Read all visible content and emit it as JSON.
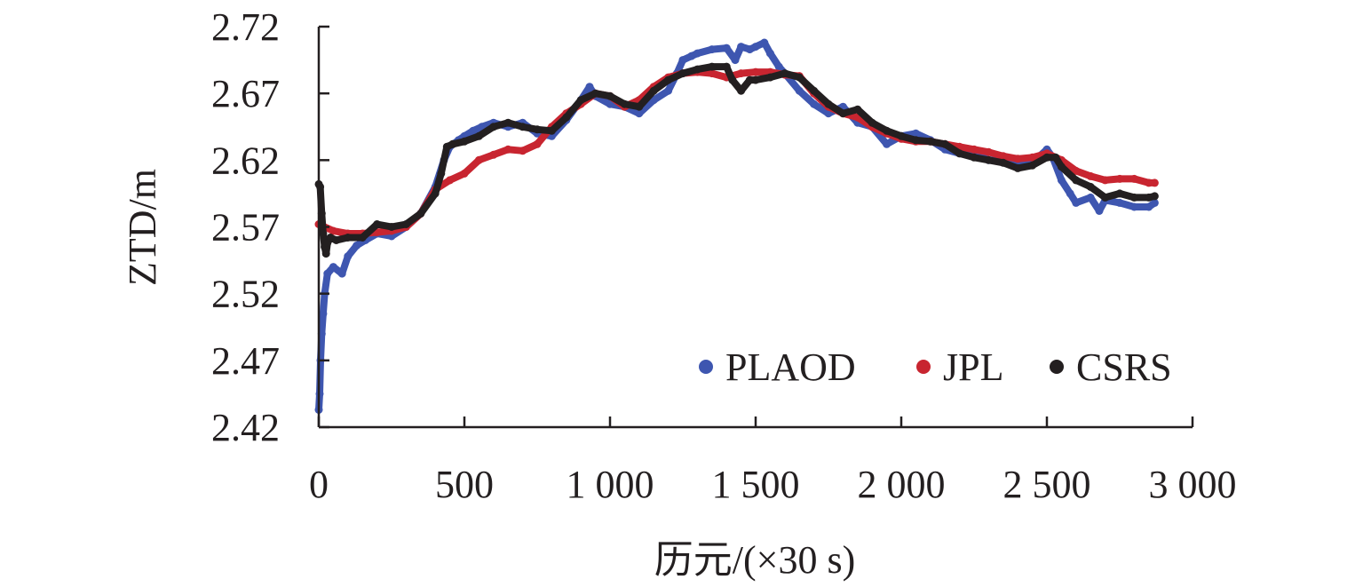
{
  "chart_data": {
    "type": "line",
    "xlabel": "历元/(×30 s)",
    "ylabel": "ZTD/m",
    "xlim": [
      0,
      3000
    ],
    "ylim": [
      2.42,
      2.72
    ],
    "x_ticks": [
      0,
      500,
      1000,
      1500,
      2000,
      2500,
      3000
    ],
    "x_tick_labels": [
      "0",
      "500",
      "1 000",
      "1 500",
      "2 000",
      "2 500",
      "3 000"
    ],
    "y_ticks": [
      2.42,
      2.47,
      2.52,
      2.57,
      2.62,
      2.67,
      2.72
    ],
    "y_tick_labels": [
      "2.42",
      "2.47",
      "2.52",
      "2.57",
      "2.62",
      "2.67",
      "2.72"
    ],
    "grid": false,
    "legend_position": "bottom-right",
    "series": [
      {
        "name": "PLAOD",
        "color": "#3e56b0",
        "x": [
          0,
          3,
          6,
          10,
          15,
          20,
          30,
          50,
          80,
          100,
          130,
          160,
          200,
          250,
          300,
          350,
          400,
          430,
          450,
          480,
          500,
          530,
          560,
          600,
          650,
          700,
          750,
          800,
          850,
          900,
          930,
          950,
          1000,
          1050,
          1100,
          1150,
          1200,
          1230,
          1250,
          1280,
          1300,
          1350,
          1400,
          1430,
          1450,
          1480,
          1500,
          1530,
          1550,
          1580,
          1600,
          1650,
          1700,
          1750,
          1800,
          1850,
          1900,
          1950,
          2000,
          2050,
          2100,
          2150,
          2200,
          2250,
          2300,
          2350,
          2400,
          2450,
          2500,
          2520,
          2550,
          2580,
          2600,
          2650,
          2680,
          2700,
          2750,
          2800,
          2850,
          2870
        ],
        "values": [
          2.433,
          2.445,
          2.47,
          2.49,
          2.505,
          2.52,
          2.535,
          2.54,
          2.535,
          2.548,
          2.556,
          2.56,
          2.565,
          2.563,
          2.57,
          2.58,
          2.6,
          2.62,
          2.63,
          2.635,
          2.638,
          2.642,
          2.645,
          2.648,
          2.645,
          2.648,
          2.64,
          2.638,
          2.65,
          2.665,
          2.675,
          2.668,
          2.662,
          2.66,
          2.655,
          2.665,
          2.672,
          2.685,
          2.695,
          2.698,
          2.7,
          2.703,
          2.704,
          2.695,
          2.705,
          2.703,
          2.705,
          2.708,
          2.7,
          2.69,
          2.685,
          2.672,
          2.662,
          2.655,
          2.66,
          2.648,
          2.645,
          2.632,
          2.638,
          2.64,
          2.635,
          2.628,
          2.625,
          2.625,
          2.62,
          2.62,
          2.618,
          2.618,
          2.628,
          2.622,
          2.605,
          2.595,
          2.588,
          2.592,
          2.582,
          2.59,
          2.588,
          2.585,
          2.585,
          2.588
        ]
      },
      {
        "name": "JPL",
        "color": "#c82530",
        "x": [
          0,
          50,
          100,
          150,
          200,
          250,
          300,
          350,
          400,
          450,
          500,
          550,
          600,
          650,
          700,
          750,
          800,
          850,
          900,
          950,
          1000,
          1050,
          1100,
          1150,
          1200,
          1250,
          1300,
          1350,
          1400,
          1450,
          1500,
          1550,
          1600,
          1650,
          1700,
          1750,
          1800,
          1850,
          1900,
          1950,
          2000,
          2050,
          2100,
          2150,
          2200,
          2250,
          2300,
          2350,
          2400,
          2450,
          2500,
          2550,
          2600,
          2650,
          2700,
          2750,
          2800,
          2850,
          2870
        ],
        "values": [
          2.572,
          2.567,
          2.565,
          2.565,
          2.566,
          2.567,
          2.57,
          2.58,
          2.598,
          2.605,
          2.61,
          2.62,
          2.624,
          2.628,
          2.627,
          2.632,
          2.645,
          2.655,
          2.662,
          2.67,
          2.668,
          2.66,
          2.665,
          2.675,
          2.682,
          2.685,
          2.686,
          2.685,
          2.682,
          2.685,
          2.686,
          2.686,
          2.684,
          2.683,
          2.67,
          2.66,
          2.655,
          2.652,
          2.645,
          2.64,
          2.636,
          2.634,
          2.634,
          2.632,
          2.63,
          2.628,
          2.626,
          2.623,
          2.621,
          2.622,
          2.625,
          2.62,
          2.612,
          2.608,
          2.605,
          2.606,
          2.606,
          2.603,
          2.603
        ]
      },
      {
        "name": "CSRS",
        "color": "#231f20",
        "x": [
          0,
          5,
          10,
          15,
          20,
          25,
          30,
          40,
          60,
          100,
          150,
          200,
          250,
          300,
          350,
          400,
          420,
          440,
          460,
          500,
          550,
          600,
          650,
          700,
          750,
          800,
          850,
          900,
          950,
          1000,
          1050,
          1100,
          1150,
          1200,
          1250,
          1300,
          1350,
          1400,
          1420,
          1450,
          1480,
          1500,
          1550,
          1600,
          1650,
          1700,
          1750,
          1800,
          1850,
          1900,
          1950,
          2000,
          2050,
          2100,
          2150,
          2200,
          2250,
          2300,
          2350,
          2400,
          2450,
          2500,
          2530,
          2550,
          2600,
          2650,
          2700,
          2750,
          2800,
          2850,
          2870
        ],
        "values": [
          2.602,
          2.6,
          2.58,
          2.565,
          2.555,
          2.55,
          2.558,
          2.562,
          2.56,
          2.562,
          2.562,
          2.572,
          2.57,
          2.572,
          2.58,
          2.595,
          2.61,
          2.63,
          2.632,
          2.634,
          2.638,
          2.645,
          2.648,
          2.645,
          2.643,
          2.642,
          2.652,
          2.665,
          2.67,
          2.668,
          2.662,
          2.66,
          2.672,
          2.68,
          2.685,
          2.688,
          2.69,
          2.69,
          2.68,
          2.672,
          2.68,
          2.68,
          2.682,
          2.685,
          2.682,
          2.672,
          2.662,
          2.655,
          2.658,
          2.648,
          2.642,
          2.638,
          2.635,
          2.634,
          2.632,
          2.625,
          2.622,
          2.62,
          2.618,
          2.614,
          2.616,
          2.622,
          2.622,
          2.615,
          2.605,
          2.6,
          2.592,
          2.595,
          2.592,
          2.592,
          2.593
        ]
      }
    ]
  }
}
